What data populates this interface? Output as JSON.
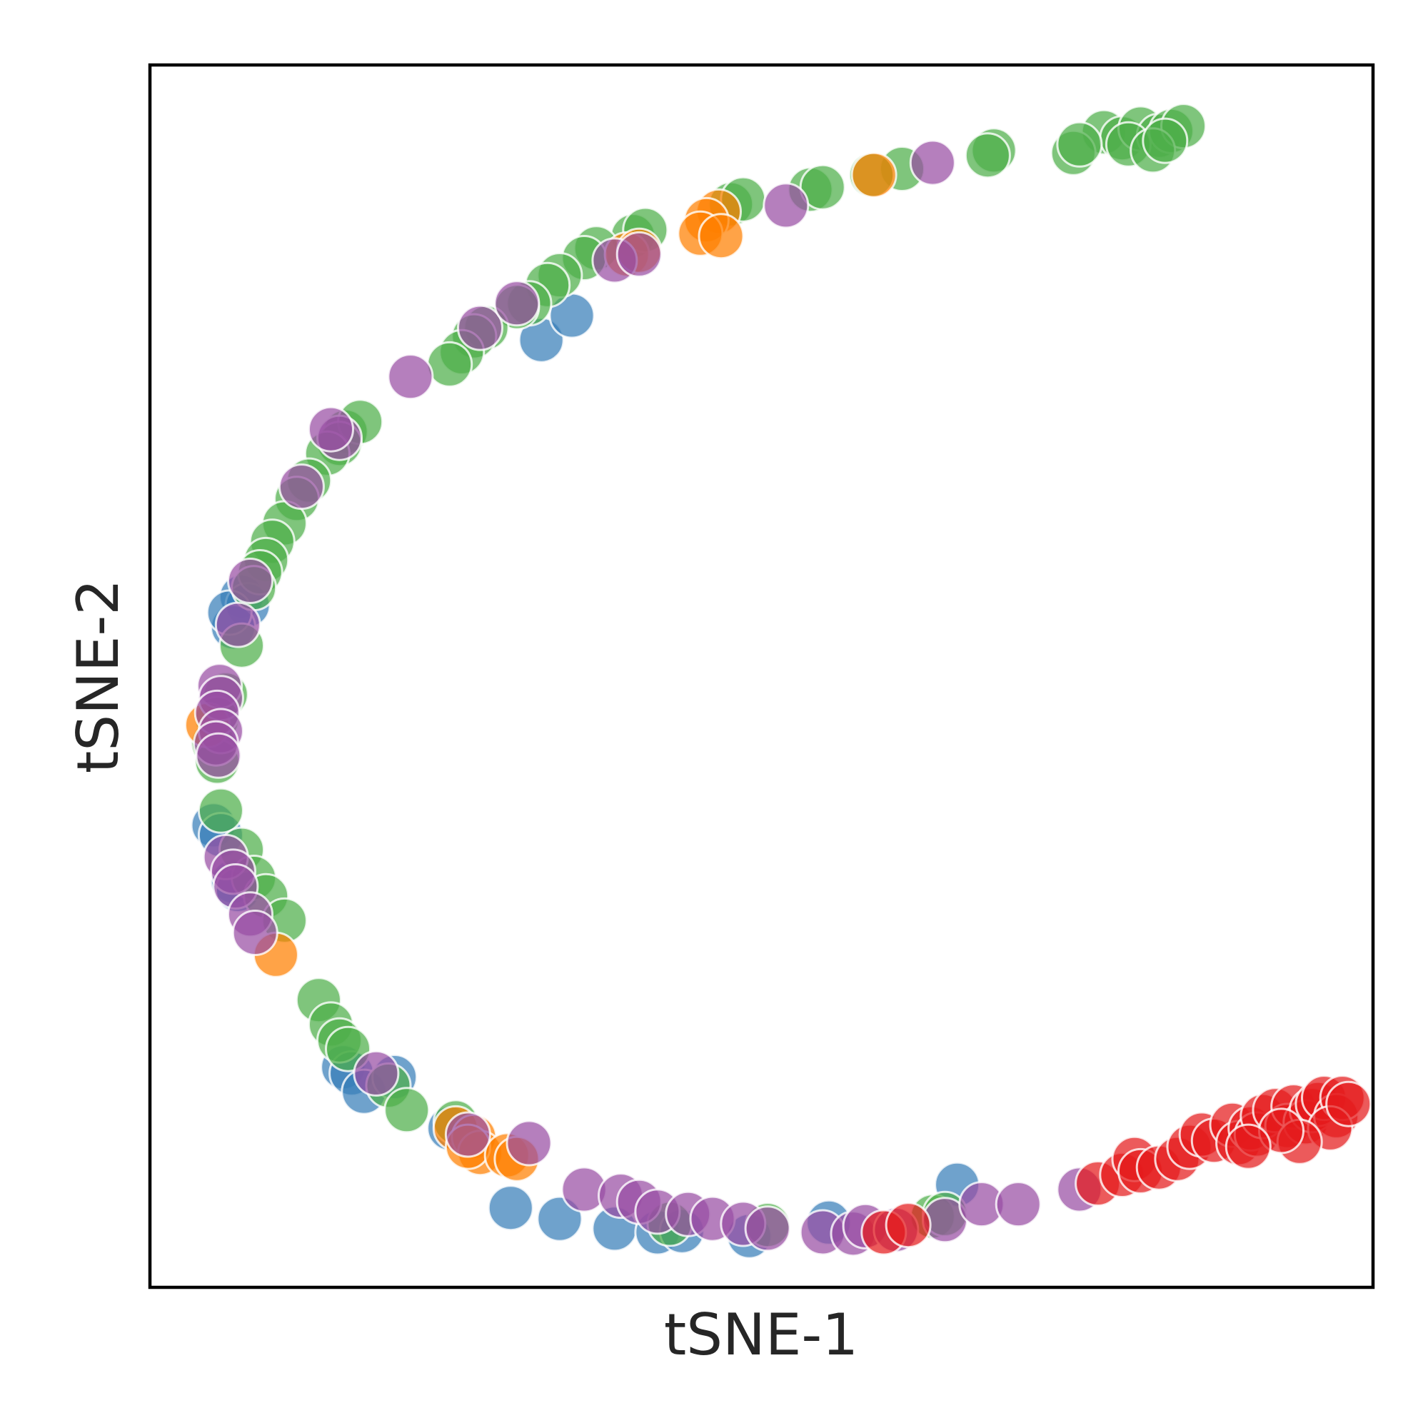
{
  "chart_data": {
    "type": "scatter",
    "title": "",
    "xlabel": "tSNE-1",
    "ylabel": "tSNE-2",
    "xticks": [],
    "yticks": [],
    "xlim": [
      0,
      100
    ],
    "ylim": [
      0,
      100
    ],
    "grid": false,
    "legend": "none",
    "marker_opacity": 0.72,
    "marker_edge_color": "#ffffff",
    "series": [
      {
        "name": "cluster-blue",
        "color": "#377eb8",
        "points": [
          [
            7.5,
            56.5
          ],
          [
            8,
            55.8
          ],
          [
            6.8,
            54
          ],
          [
            6.5,
            55.2
          ],
          [
            5.2,
            37.8
          ],
          [
            5.8,
            37
          ],
          [
            6.8,
            33.2
          ],
          [
            7.2,
            32.5
          ],
          [
            15.8,
            18
          ],
          [
            16.5,
            17.5
          ],
          [
            17.5,
            16
          ],
          [
            20,
            17.2
          ],
          [
            24.5,
            13
          ],
          [
            29.5,
            6.5
          ],
          [
            33.5,
            5.6
          ],
          [
            38,
            4.8
          ],
          [
            41.5,
            4.5
          ],
          [
            43.5,
            4.6
          ],
          [
            49,
            4.2
          ],
          [
            55.5,
            5.3
          ],
          [
            66,
            8.4
          ],
          [
            32,
            77.5
          ],
          [
            34.5,
            79.5
          ]
        ]
      },
      {
        "name": "cluster-green",
        "color": "#4daf4a",
        "points": [
          [
            78,
            94.5
          ],
          [
            79.5,
            94
          ],
          [
            81,
            94.8
          ],
          [
            82.5,
            94.2
          ],
          [
            83.5,
            94.6
          ],
          [
            84.5,
            95
          ],
          [
            80,
            93.5
          ],
          [
            82,
            93
          ],
          [
            83,
            93.8
          ],
          [
            75.5,
            92.8
          ],
          [
            76,
            93.5
          ],
          [
            69,
            93
          ],
          [
            68.5,
            92.6
          ],
          [
            61.5,
            91.5
          ],
          [
            59,
            91
          ],
          [
            54,
            89.8
          ],
          [
            55,
            90
          ],
          [
            47.5,
            88.6
          ],
          [
            48.5,
            89
          ],
          [
            39.5,
            86
          ],
          [
            40.5,
            86.5
          ],
          [
            36.5,
            85
          ],
          [
            35.5,
            84.2
          ],
          [
            33.5,
            82.8
          ],
          [
            32.5,
            82
          ],
          [
            31,
            80.5
          ],
          [
            30,
            80.2
          ],
          [
            27.5,
            78.5
          ],
          [
            26.5,
            77.8
          ],
          [
            25.5,
            76.5
          ],
          [
            24.5,
            75.5
          ],
          [
            16,
            70
          ],
          [
            17.2,
            70.8
          ],
          [
            15.5,
            69
          ],
          [
            14.5,
            68.2
          ],
          [
            13,
            66
          ],
          [
            12,
            64.5
          ],
          [
            11,
            62.5
          ],
          [
            10,
            61
          ],
          [
            9.5,
            59.5
          ],
          [
            9,
            58.5
          ],
          [
            8.5,
            57.2
          ],
          [
            7.5,
            52.5
          ],
          [
            6.2,
            48.5
          ],
          [
            5.5,
            46.5
          ],
          [
            5.2,
            44.5
          ],
          [
            5.5,
            43
          ],
          [
            5.8,
            39
          ],
          [
            7.5,
            35.8
          ],
          [
            8.5,
            33.5
          ],
          [
            9.5,
            32
          ],
          [
            11,
            30
          ],
          [
            13.8,
            23.5
          ],
          [
            14.8,
            21.5
          ],
          [
            15.5,
            20.2
          ],
          [
            16.2,
            19.5
          ],
          [
            19.5,
            16.5
          ],
          [
            21,
            14.5
          ],
          [
            25,
            13.5
          ],
          [
            42.5,
            5.2
          ],
          [
            50.5,
            5.1
          ],
          [
            64,
            5.8
          ],
          [
            65,
            6
          ]
        ]
      },
      {
        "name": "cluster-orange",
        "color": "#ff7f00",
        "points": [
          [
            46.5,
            88
          ],
          [
            45.5,
            87.3
          ],
          [
            45,
            86.2
          ],
          [
            46.7,
            86
          ],
          [
            39,
            84.5
          ],
          [
            40,
            84.8
          ],
          [
            59.2,
            91
          ],
          [
            4.7,
            46
          ],
          [
            10.3,
            27.2
          ],
          [
            25,
            13
          ],
          [
            26.5,
            12.3
          ],
          [
            27,
            11
          ],
          [
            26,
            11.5
          ],
          [
            29.2,
            10.8
          ],
          [
            30,
            10.5
          ]
        ]
      },
      {
        "name": "cluster-purple",
        "color": "#984ea3",
        "points": [
          [
            21.3,
            74.5
          ],
          [
            27,
            78.5
          ],
          [
            30,
            80.5
          ],
          [
            38,
            84
          ],
          [
            40,
            84.5
          ],
          [
            52,
            88.5
          ],
          [
            64,
            92
          ],
          [
            15.5,
            69.5
          ],
          [
            14.8,
            70.2
          ],
          [
            12.4,
            65.5
          ],
          [
            8.2,
            57.8
          ],
          [
            7.2,
            54.2
          ],
          [
            5.7,
            49.2
          ],
          [
            5.8,
            48.2
          ],
          [
            5.5,
            47
          ],
          [
            5.8,
            45.5
          ],
          [
            5.4,
            44.5
          ],
          [
            5.6,
            43.5
          ],
          [
            6.2,
            35.2
          ],
          [
            6.8,
            34
          ],
          [
            7,
            32.8
          ],
          [
            8.2,
            30.5
          ],
          [
            8.6,
            29
          ],
          [
            18.5,
            17.5
          ],
          [
            26,
            12.5
          ],
          [
            31,
            11.8
          ],
          [
            35.5,
            8
          ],
          [
            38.5,
            7.5
          ],
          [
            40,
            7
          ],
          [
            41.5,
            6.2
          ],
          [
            44,
            6
          ],
          [
            46,
            5.6
          ],
          [
            48.5,
            5.2
          ],
          [
            50.5,
            4.8
          ],
          [
            55,
            4.5
          ],
          [
            57.5,
            4.4
          ],
          [
            58.5,
            5
          ],
          [
            61,
            4.7
          ],
          [
            65,
            5.5
          ],
          [
            68,
            6.8
          ],
          [
            71,
            6.8
          ],
          [
            76,
            8
          ]
        ]
      },
      {
        "name": "cluster-red",
        "color": "#e41a1c",
        "points": [
          [
            60,
            4.5
          ],
          [
            62,
            5.1
          ],
          [
            77.5,
            8.5
          ],
          [
            79.5,
            9.2
          ],
          [
            80.5,
            10.5
          ],
          [
            81,
            9.5
          ],
          [
            82.5,
            9.8
          ],
          [
            84,
            10.5
          ],
          [
            85,
            11.5
          ],
          [
            86,
            12.5
          ],
          [
            87,
            12
          ],
          [
            88.5,
            13.3
          ],
          [
            89,
            11.8
          ],
          [
            90,
            13
          ],
          [
            90.5,
            12.5
          ],
          [
            91,
            14
          ],
          [
            92,
            14.5
          ],
          [
            93,
            13.2
          ],
          [
            93.5,
            14.8
          ],
          [
            94.5,
            13.5
          ],
          [
            95,
            14.5
          ],
          [
            95.5,
            15
          ],
          [
            96,
            15.5
          ],
          [
            97,
            14
          ],
          [
            97.5,
            15.5
          ],
          [
            96.5,
            13
          ],
          [
            98,
            15
          ],
          [
            94,
            11.9
          ],
          [
            92.5,
            12.8
          ],
          [
            89.8,
            11.5
          ]
        ]
      }
    ]
  }
}
